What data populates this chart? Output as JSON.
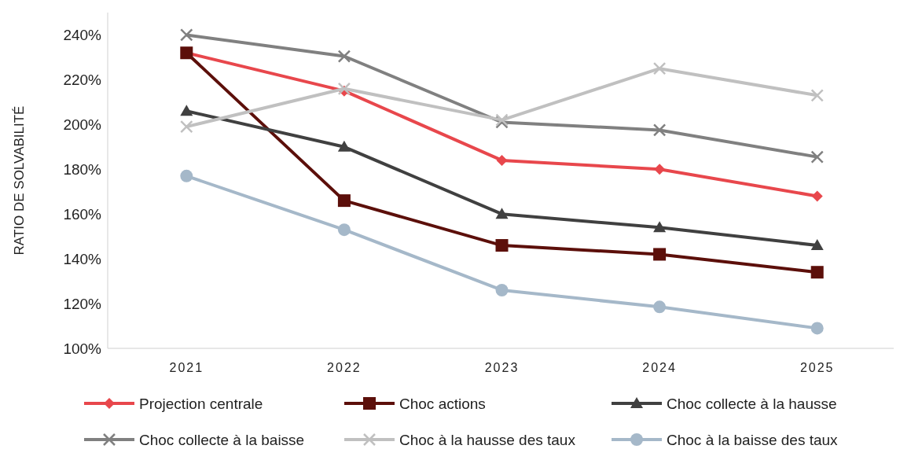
{
  "chart_data": {
    "type": "line",
    "ylabel": "RATIO DE SOLVABILITÉ",
    "categories": [
      "2021",
      "2022",
      "2023",
      "2024",
      "2025"
    ],
    "ylim": [
      100,
      250
    ],
    "yticks": [
      {
        "value": 100,
        "label": "100%"
      },
      {
        "value": 120,
        "label": "120%"
      },
      {
        "value": 140,
        "label": "140%"
      },
      {
        "value": 160,
        "label": "160%"
      },
      {
        "value": 180,
        "label": "180%"
      },
      {
        "value": 200,
        "label": "200%"
      },
      {
        "value": 220,
        "label": "220%"
      },
      {
        "value": 240,
        "label": "240%"
      }
    ],
    "grid": false,
    "legend": "bottom",
    "line_style": "solid",
    "series": [
      {
        "name": "Projection centrale",
        "color": "#e8474c",
        "marker": "diamond",
        "values": [
          232,
          215,
          184,
          180,
          168
        ]
      },
      {
        "name": "Choc actions",
        "color": "#5c0f0a",
        "marker": "square",
        "values": [
          232,
          166,
          146,
          142,
          134
        ]
      },
      {
        "name": "Choc collecte à la hausse",
        "color": "#404040",
        "marker": "triangle",
        "values": [
          206,
          190,
          160,
          154,
          146
        ]
      },
      {
        "name": "Choc collecte à la baisse",
        "color": "#808080",
        "marker": "cross",
        "values": [
          240,
          230.5,
          201,
          197.5,
          185.5
        ]
      },
      {
        "name": "Choc à la hausse des taux",
        "color": "#c0c0c0",
        "marker": "cross",
        "values": [
          199,
          216,
          202,
          225,
          213
        ]
      },
      {
        "name": "Choc à la baisse des taux",
        "color": "#a5b8c9",
        "marker": "circle",
        "values": [
          177,
          153,
          126,
          118.5,
          109
        ]
      }
    ]
  }
}
